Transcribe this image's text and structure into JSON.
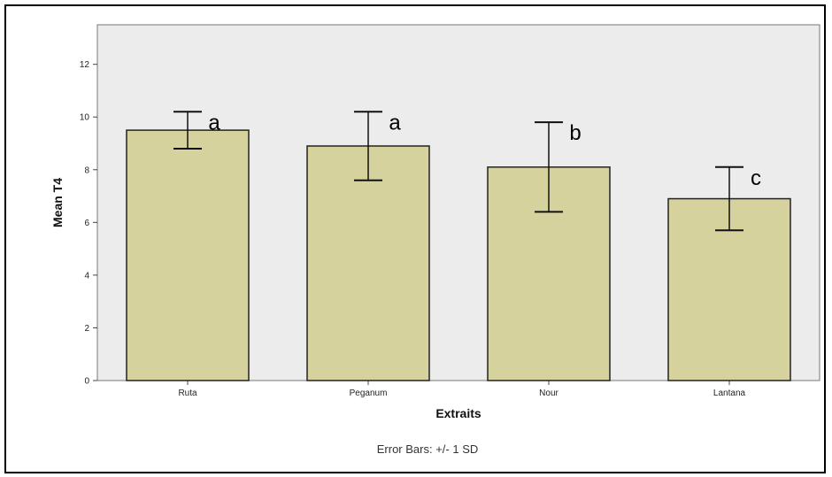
{
  "chart_data": {
    "type": "bar",
    "categories": [
      "Ruta",
      "Peganum",
      "Nour",
      "Lantana"
    ],
    "values": [
      9.5,
      8.9,
      8.1,
      6.9
    ],
    "error": [
      {
        "low": 8.8,
        "high": 10.2
      },
      {
        "low": 7.6,
        "high": 10.2
      },
      {
        "low": 6.4,
        "high": 9.8
      },
      {
        "low": 5.7,
        "high": 8.1
      }
    ],
    "significance_letters": [
      "a",
      "a",
      "b",
      "c"
    ],
    "xlabel": "Extraits",
    "ylabel": "Mean T4",
    "ylim": [
      0,
      13.5
    ],
    "yticks": [
      0,
      2,
      4,
      6,
      8,
      10,
      12
    ],
    "grid": false,
    "footnote": "Error Bars: +/- 1 SD",
    "colors": {
      "plot_background": "#ececec",
      "bar_fill": "#d6d29d",
      "bar_stroke": "#222222"
    }
  }
}
